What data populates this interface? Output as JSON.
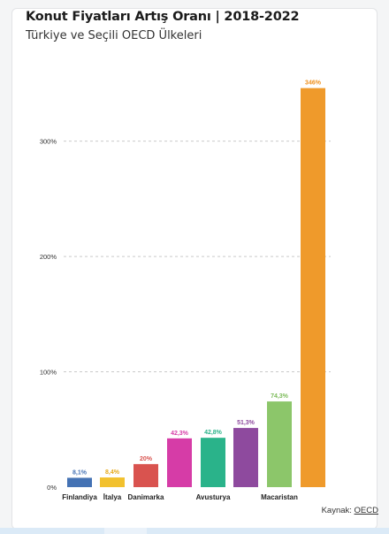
{
  "header": {
    "title": "Konut Fiyatları Artış Oranı | 2018-2022",
    "subtitle": "Türkiye ve Seçili OECD Ülkeleri"
  },
  "footer": {
    "source_label": "Kaynak:",
    "source_link": "OECD"
  },
  "chart_data": {
    "type": "bar",
    "categories": [
      "Finlandiya",
      "İtalya",
      "Danimarka",
      "",
      "Avusturya",
      "",
      "Macaristan",
      ""
    ],
    "values": [
      8.1,
      8.4,
      20,
      42.3,
      42.8,
      51.3,
      74.3,
      346
    ],
    "value_labels": [
      "8,1%",
      "8,4%",
      "20%",
      "42,3%",
      "42,8%",
      "51,3%",
      "74,3%",
      "346%"
    ],
    "colors": [
      "#4472b4",
      "#f2c12e",
      "#d9534f",
      "#d63ca7",
      "#2ab38a",
      "#8e4a9e",
      "#8cc66a",
      "#ef9a2b"
    ],
    "label_colors": [
      "#4472b4",
      "#e6a919",
      "#d9534f",
      "#d63ca7",
      "#2ab38a",
      "#8e4a9e",
      "#7dbb5a",
      "#ef8f1a"
    ],
    "yticks": [
      0,
      100,
      200,
      300
    ],
    "ytick_labels": [
      "0%",
      "100%",
      "200%",
      "300%"
    ],
    "ylim": [
      0,
      346
    ],
    "grid": true,
    "title": "Konut Fiyatları Artış Oranı | 2018-2022",
    "xlabel": "",
    "ylabel": ""
  }
}
